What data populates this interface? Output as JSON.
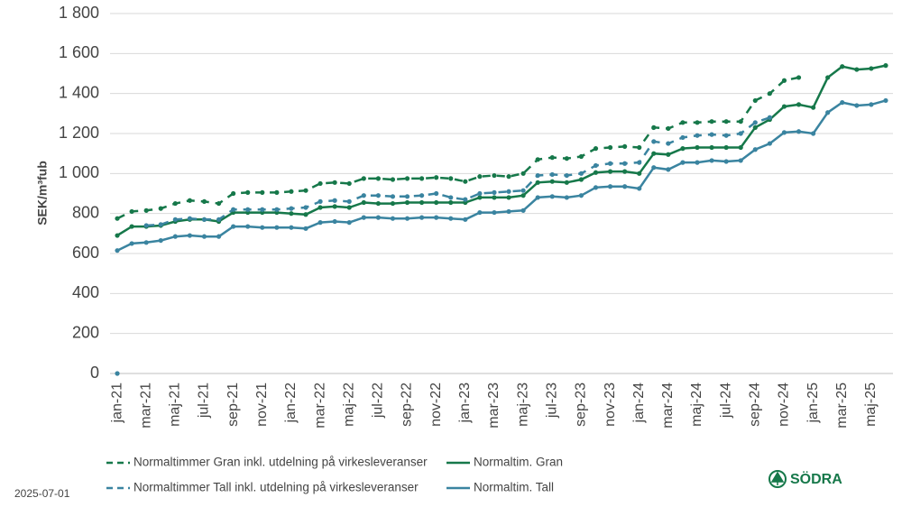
{
  "chart_data": {
    "type": "line",
    "y_label": "SEK/m³fub",
    "categories": [
      "jan-21",
      null,
      "mar-21",
      null,
      "maj-21",
      null,
      "jul-21",
      null,
      "sep-21",
      null,
      "nov-21",
      null,
      "jan-22",
      null,
      "mar-22",
      null,
      "maj-22",
      null,
      "jul-22",
      null,
      "sep-22",
      null,
      "nov-22",
      null,
      "jan-23",
      null,
      "mar-23",
      null,
      "maj-23",
      null,
      "jul-23",
      null,
      "sep-23",
      null,
      "nov-23",
      null,
      "jan-24",
      null,
      "mar-24",
      null,
      "maj-24",
      null,
      "jul-24",
      null,
      "sep-24",
      null,
      "nov-24",
      null,
      "jan-25",
      null,
      "mar-25",
      null,
      "maj-25",
      null
    ],
    "series": [
      {
        "name": "Normaltimmer Gran inkl. utdelning på virkesleveranser",
        "color": "#16784a",
        "dashed": true,
        "values": [
          775,
          810,
          815,
          825,
          850,
          865,
          860,
          850,
          900,
          905,
          905,
          905,
          910,
          915,
          950,
          955,
          950,
          975,
          975,
          970,
          975,
          975,
          980,
          975,
          960,
          985,
          990,
          985,
          1000,
          1070,
          1080,
          1075,
          1085,
          1125,
          1130,
          1135,
          1130,
          1230,
          1225,
          1255,
          1255,
          1260,
          1260,
          1260,
          1365,
          1400,
          1465,
          1480,
          null,
          null,
          null,
          null,
          null,
          null
        ]
      },
      {
        "name": "Normaltim. Gran",
        "color": "#16784a",
        "dashed": false,
        "values": [
          690,
          735,
          735,
          740,
          760,
          770,
          770,
          760,
          805,
          805,
          805,
          805,
          800,
          795,
          830,
          835,
          830,
          855,
          850,
          850,
          855,
          855,
          855,
          855,
          855,
          880,
          880,
          880,
          890,
          955,
          960,
          955,
          970,
          1005,
          1010,
          1010,
          1000,
          1100,
          1095,
          1125,
          1130,
          1130,
          1130,
          1130,
          1230,
          1270,
          1335,
          1345,
          1330,
          1480,
          1535,
          1520,
          1525,
          1540
        ]
      },
      {
        "name": "Normaltimmer Tall inkl. utdelning på virkesleveranser",
        "color": "#3a84a0",
        "dashed": true,
        "values": [
          0,
          null,
          740,
          745,
          770,
          775,
          770,
          770,
          820,
          820,
          820,
          820,
          825,
          830,
          860,
          865,
          860,
          890,
          890,
          885,
          885,
          890,
          900,
          880,
          870,
          900,
          905,
          910,
          915,
          990,
          995,
          990,
          1000,
          1040,
          1050,
          1050,
          1055,
          1160,
          1150,
          1180,
          1190,
          1195,
          1190,
          1200,
          1255,
          1280,
          null,
          null,
          null,
          null,
          null,
          null,
          null,
          null
        ]
      },
      {
        "name": "Normaltim. Tall",
        "color": "#3a84a0",
        "dashed": false,
        "values": [
          615,
          650,
          655,
          665,
          685,
          690,
          685,
          685,
          735,
          735,
          730,
          730,
          730,
          725,
          755,
          760,
          755,
          780,
          780,
          775,
          775,
          780,
          780,
          775,
          770,
          805,
          805,
          810,
          815,
          880,
          885,
          880,
          890,
          930,
          935,
          935,
          925,
          1030,
          1020,
          1055,
          1055,
          1065,
          1060,
          1065,
          1120,
          1150,
          1205,
          1210,
          1200,
          1305,
          1355,
          1340,
          1345,
          1365
        ]
      }
    ],
    "ylim": [
      0,
      1800
    ],
    "yticks": [
      0,
      200,
      400,
      600,
      800,
      {
        "value": 1000,
        "label": "1 000"
      },
      {
        "value": 1200,
        "label": "1 200"
      },
      {
        "value": 1400,
        "label": "1 400"
      },
      {
        "value": 1600,
        "label": "1 600"
      },
      {
        "value": 1800,
        "label": "1 800"
      }
    ],
    "grid": true
  },
  "footer": {
    "date": "2025-07-01",
    "logo": "SÖDRA"
  }
}
